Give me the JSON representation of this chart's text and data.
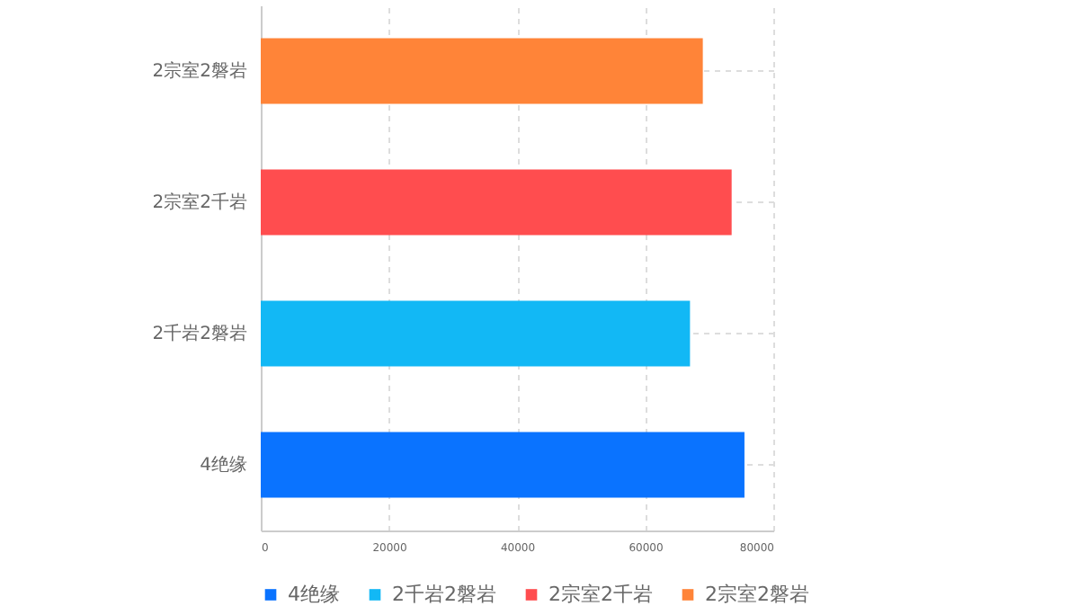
{
  "chart_data": {
    "type": "bar",
    "orientation": "horizontal",
    "categories": [
      "2宗室2磐岩",
      "2宗室2千岩",
      "2千岩2磐岩",
      "4绝缘"
    ],
    "series": [
      {
        "name": "4绝缘",
        "color": "#0a73ff",
        "values": [
          null,
          null,
          null,
          75500
        ]
      },
      {
        "name": "2千岩2磐岩",
        "color": "#12b8f5",
        "values": [
          null,
          null,
          67000,
          null
        ]
      },
      {
        "name": "2宗室2千岩",
        "color": "#ff4d4f",
        "values": [
          null,
          73500,
          null,
          null
        ]
      },
      {
        "name": "2宗室2磐岩",
        "color": "#ff8438",
        "values": [
          69000,
          null,
          null,
          null
        ]
      }
    ],
    "xlim": [
      0,
      80000
    ],
    "xticks": [
      0,
      20000,
      40000,
      60000,
      80000
    ],
    "grid": true,
    "legend": "bottom"
  }
}
